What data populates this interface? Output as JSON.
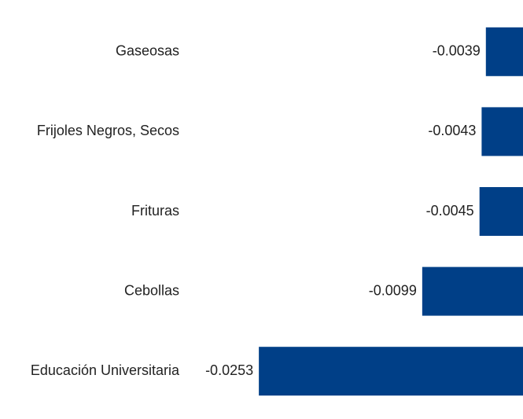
{
  "chart_data": {
    "type": "barh",
    "categories": [
      "Gaseosas",
      "Frijoles Negros, Secos",
      "Frituras",
      "Cebollas",
      "Educación Universitaria"
    ],
    "values": [
      -0.0039,
      -0.0043,
      -0.0045,
      -0.0099,
      -0.0253
    ],
    "color": "#003f87",
    "xlim": [
      -0.0497,
      -0.0004
    ]
  }
}
